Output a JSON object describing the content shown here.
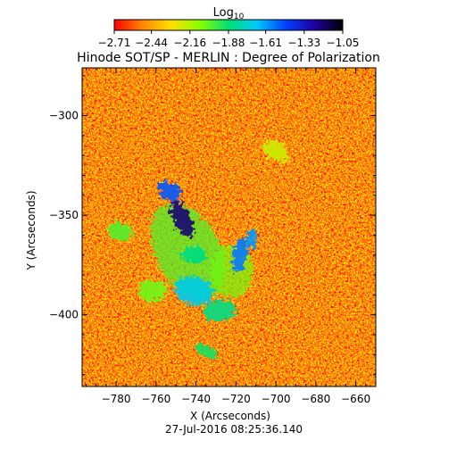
{
  "chart_data": {
    "type": "heatmap",
    "title": "Hinode SOT/SP - MERLIN : Degree of Polarization",
    "timestamp": "27-Jul-2016 08:25:36.140",
    "xlabel": "X (Arcseconds)",
    "ylabel": "Y (Arcseconds)",
    "xlim": [
      -797,
      -650
    ],
    "ylim": [
      -436,
      -276
    ],
    "xticks": [
      -780,
      -760,
      -740,
      -720,
      -700,
      -680,
      -660
    ],
    "xtick_labels": [
      "−780",
      "−760",
      "−740",
      "−720",
      "−700",
      "−680",
      "−660"
    ],
    "yticks": [
      -300,
      -350,
      -400
    ],
    "ytick_labels": [
      "−300",
      "−350",
      "−400"
    ],
    "colorbar": {
      "label_base": "Log",
      "label_sub": "10",
      "range": [
        -2.71,
        -1.05
      ],
      "ticks": [
        -2.71,
        -2.44,
        -2.16,
        -1.88,
        -1.61,
        -1.33,
        -1.05
      ],
      "tick_labels": [
        "−2.71",
        "−2.44",
        "−2.16",
        "−1.88",
        "−1.61",
        "−1.33",
        "−1.05"
      ],
      "colors": [
        "#ff0000",
        "#ff8800",
        "#ffe000",
        "#88ff00",
        "#00e070",
        "#00c8ff",
        "#0040ff",
        "#2000a0",
        "#000000"
      ]
    },
    "field": {
      "background_level": -2.5,
      "regions": [
        {
          "x": -747,
          "y": -352,
          "level": -1.2
        },
        {
          "x": -753,
          "y": -338,
          "level": -1.5
        },
        {
          "x": -741,
          "y": -370,
          "level": -1.85
        },
        {
          "x": -741,
          "y": -388,
          "level": -1.7
        },
        {
          "x": -718,
          "y": -370,
          "level": -1.55
        },
        {
          "x": -712,
          "y": -362,
          "level": -1.6
        },
        {
          "x": -728,
          "y": -398,
          "level": -1.85
        },
        {
          "x": -778,
          "y": -358,
          "level": -2.0
        },
        {
          "x": -762,
          "y": -388,
          "level": -2.05
        },
        {
          "x": -700,
          "y": -318,
          "level": -2.2
        },
        {
          "x": -735,
          "y": -418,
          "level": -1.9
        }
      ]
    }
  }
}
